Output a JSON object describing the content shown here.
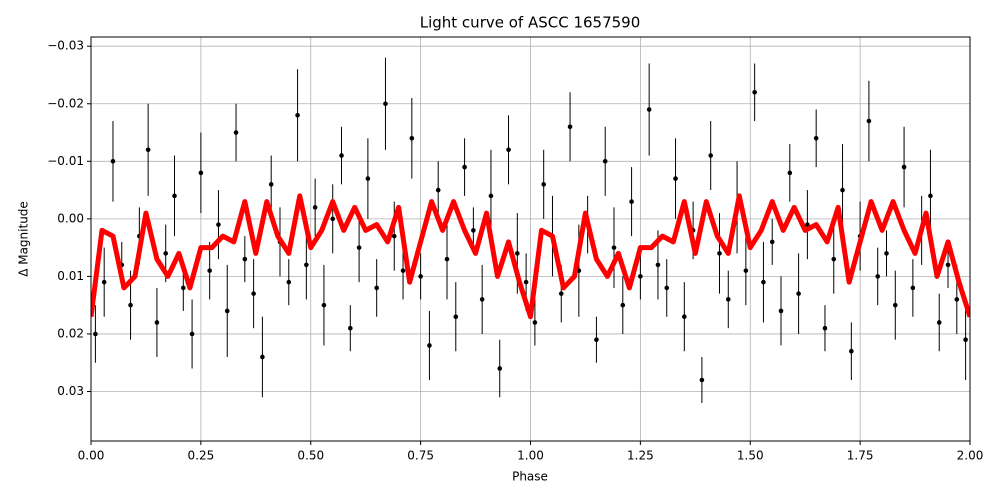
{
  "chart_data": {
    "type": "scatter",
    "title": "Light curve of ASCC 1657590",
    "xlabel": "Phase",
    "ylabel": "Δ Magnitude",
    "xlim": [
      0,
      2
    ],
    "ylim": [
      -0.0316,
      0.0386
    ],
    "invert_y": true,
    "grid": true,
    "xticks": [
      {
        "value": 0,
        "label": "0.00"
      },
      0.25,
      {
        "value": 0.5,
        "label": "0.50"
      },
      0.75,
      {
        "value": 1,
        "label": "1.00"
      },
      1.25,
      {
        "value": 1.5,
        "label": "1.50"
      },
      1.75,
      {
        "value": 2,
        "label": "2.00"
      }
    ],
    "yticks": [
      {
        "value": -0.03,
        "label": "−0.03"
      },
      {
        "value": -0.02,
        "label": "−0.02"
      },
      {
        "value": -0.01,
        "label": "−0.01"
      },
      {
        "value": 0,
        "label": "0.00"
      },
      0.01,
      0.02,
      0.03
    ],
    "series": [
      {
        "kind": "errorbar",
        "color": "#000000",
        "x": [
          0.01,
          0.03,
          0.05,
          0.07,
          0.09,
          0.11,
          0.13,
          0.15,
          0.17,
          0.19,
          0.21,
          0.23,
          0.25,
          0.27,
          0.29,
          0.31,
          0.33,
          0.35,
          0.37,
          0.39,
          0.41,
          0.43,
          0.45,
          0.47,
          0.49,
          0.51,
          0.53,
          0.55,
          0.57,
          0.59,
          0.61,
          0.63,
          0.65,
          0.67,
          0.69,
          0.71,
          0.73,
          0.75,
          0.77,
          0.79,
          0.81,
          0.83,
          0.85,
          0.87,
          0.89,
          0.91,
          0.93,
          0.95,
          0.97,
          0.99,
          1.01,
          1.03,
          1.05,
          1.07,
          1.09,
          1.11,
          1.13,
          1.15,
          1.17,
          1.19,
          1.21,
          1.23,
          1.25,
          1.27,
          1.29,
          1.31,
          1.33,
          1.35,
          1.37,
          1.39,
          1.41,
          1.43,
          1.45,
          1.47,
          1.49,
          1.51,
          1.53,
          1.55,
          1.57,
          1.59,
          1.61,
          1.63,
          1.65,
          1.67,
          1.69,
          1.71,
          1.73,
          1.75,
          1.77,
          1.79,
          1.81,
          1.83,
          1.85,
          1.87,
          1.89,
          1.91,
          1.93,
          1.95,
          1.97,
          1.99
        ],
        "values": [
          0.02,
          0.011,
          -0.01,
          0.008,
          0.015,
          0.003,
          -0.012,
          0.018,
          0.006,
          -0.004,
          0.012,
          0.02,
          -0.008,
          0.009,
          0.001,
          0.016,
          -0.015,
          0.007,
          0.013,
          0.024,
          -0.006,
          0.004,
          0.011,
          -0.018,
          0.008,
          -0.002,
          0.015,
          0,
          -0.011,
          0.019,
          0.005,
          -0.007,
          0.012,
          -0.02,
          0.003,
          0.009,
          -0.014,
          0.01,
          0.022,
          -0.005,
          0.007,
          0.017,
          -0.009,
          0.002,
          0.014,
          -0.004,
          0.026,
          -0.012,
          0.006,
          0.011,
          0.018,
          -0.006,
          0.003,
          0.013,
          -0.016,
          0.009,
          0.001,
          0.021,
          -0.01,
          0.005,
          0.015,
          -0.003,
          0.01,
          -0.019,
          0.008,
          0.012,
          -0.007,
          0.017,
          0.002,
          0.028,
          -0.011,
          0.006,
          0.014,
          -0.002,
          0.009,
          -0.022,
          0.011,
          0.004,
          0.016,
          -0.008,
          0.013,
          0.001,
          -0.014,
          0.019,
          0.007,
          -0.005,
          0.023,
          0.003,
          -0.017,
          0.01,
          0.006,
          0.015,
          -0.009,
          0.012,
          0.002,
          -0.004,
          0.018,
          0.008,
          0.014,
          0.021
        ],
        "errors": [
          0.005,
          0.006,
          0.007,
          0.004,
          0.006,
          0.005,
          0.008,
          0.006,
          0.005,
          0.007,
          0.004,
          0.006,
          0.007,
          0.005,
          0.006,
          0.008,
          0.005,
          0.004,
          0.006,
          0.007,
          0.005,
          0.006,
          0.004,
          0.008,
          0.006,
          0.005,
          0.007,
          0.006,
          0.005,
          0.004,
          0.006,
          0.007,
          0.005,
          0.008,
          0.006,
          0.005,
          0.007,
          0.004,
          0.006,
          0.005,
          0.007,
          0.006,
          0.005,
          0.004,
          0.006,
          0.008,
          0.005,
          0.006,
          0.007,
          0.005,
          0.004,
          0.006,
          0.007,
          0.005,
          0.006,
          0.008,
          0.005,
          0.004,
          0.006,
          0.007,
          0.005,
          0.006,
          0.004,
          0.008,
          0.006,
          0.005,
          0.007,
          0.006,
          0.005,
          0.004,
          0.006,
          0.007,
          0.005,
          0.008,
          0.006,
          0.005,
          0.007,
          0.004,
          0.006,
          0.005,
          0.007,
          0.006,
          0.005,
          0.004,
          0.006,
          0.008,
          0.005,
          0.006,
          0.007,
          0.005,
          0.004,
          0.006,
          0.007,
          0.005,
          0.006,
          0.008,
          0.005,
          0.004,
          0.006,
          0.007
        ]
      },
      {
        "kind": "line",
        "color": "#ff0000",
        "x": [
          0,
          0.025,
          0.05,
          0.075,
          0.1,
          0.125,
          0.15,
          0.175,
          0.2,
          0.225,
          0.25,
          0.275,
          0.3,
          0.325,
          0.35,
          0.375,
          0.4,
          0.425,
          0.45,
          0.475,
          0.5,
          0.525,
          0.55,
          0.575,
          0.6,
          0.625,
          0.65,
          0.675,
          0.7,
          0.725,
          0.75,
          0.775,
          0.8,
          0.825,
          0.85,
          0.875,
          0.9,
          0.925,
          0.95,
          0.975,
          1,
          1.025,
          1.05,
          1.075,
          1.1,
          1.125,
          1.15,
          1.175,
          1.2,
          1.225,
          1.25,
          1.275,
          1.3,
          1.325,
          1.35,
          1.375,
          1.4,
          1.425,
          1.45,
          1.475,
          1.5,
          1.525,
          1.55,
          1.575,
          1.6,
          1.625,
          1.65,
          1.675,
          1.7,
          1.725,
          1.75,
          1.775,
          1.8,
          1.825,
          1.85,
          1.875,
          1.9,
          1.925,
          1.95,
          1.975,
          2
        ],
        "values": [
          0.017,
          0.002,
          0.003,
          0.012,
          0.01,
          -0.001,
          0.007,
          0.01,
          0.006,
          0.012,
          0.005,
          0.005,
          0.003,
          0.004,
          -0.003,
          0.006,
          -0.003,
          0.003,
          0.006,
          -0.004,
          0.005,
          0.002,
          -0.003,
          0.002,
          -0.002,
          0.002,
          0.001,
          0.004,
          -0.002,
          0.011,
          0.004,
          -0.003,
          0.002,
          -0.003,
          0.002,
          0.006,
          -0.001,
          0.01,
          0.004,
          0.011,
          0.017,
          0.002,
          0.003,
          0.012,
          0.01,
          -0.001,
          0.007,
          0.01,
          0.006,
          0.012,
          0.005,
          0.005,
          0.003,
          0.004,
          -0.003,
          0.006,
          -0.003,
          0.003,
          0.006,
          -0.004,
          0.005,
          0.002,
          -0.003,
          0.002,
          -0.002,
          0.002,
          0.001,
          0.004,
          -0.002,
          0.011,
          0.004,
          -0.003,
          0.002,
          -0.003,
          0.002,
          0.006,
          -0.001,
          0.01,
          0.004,
          0.011,
          0.017
        ]
      }
    ]
  }
}
